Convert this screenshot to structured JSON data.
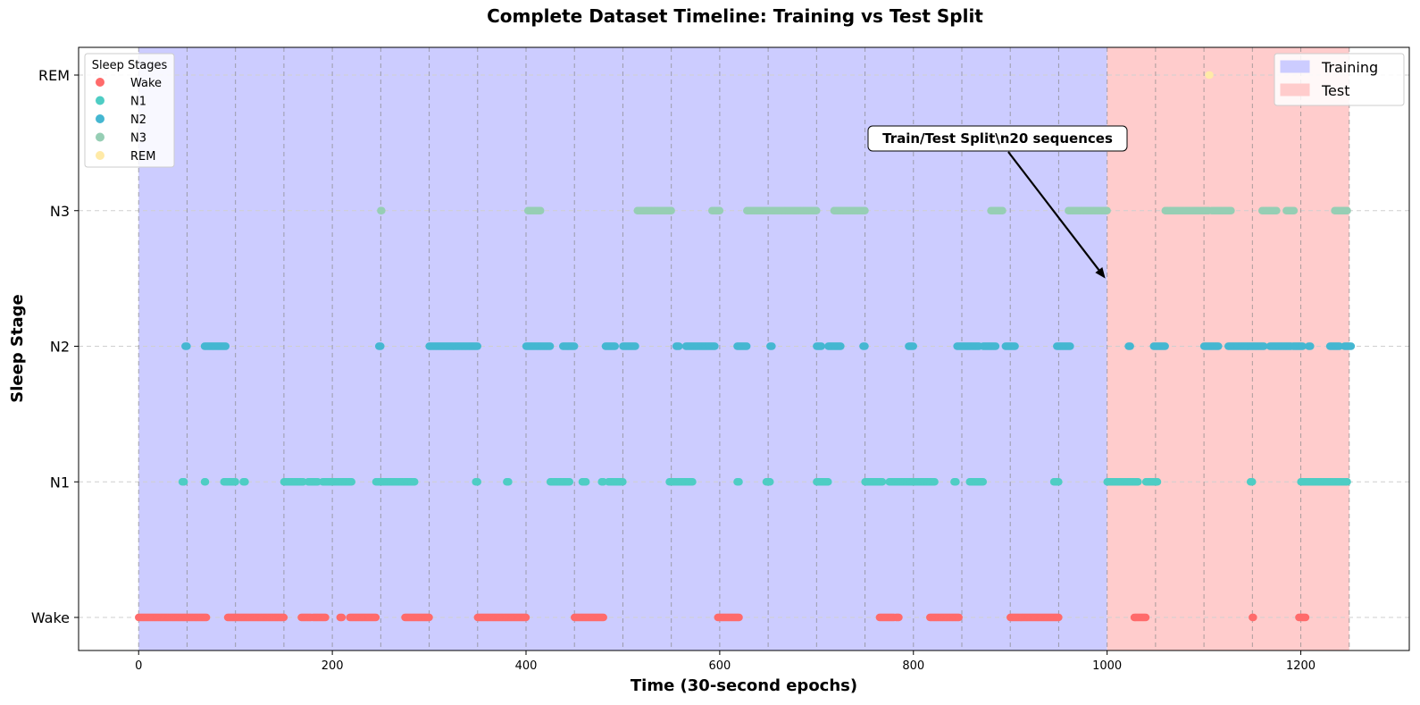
{
  "chart_data": {
    "type": "scatter",
    "title": "Complete Dataset Timeline: Training vs Test Split",
    "xlabel": "Time (30-second epochs)",
    "ylabel": "Sleep Stage",
    "xlim": [
      -62,
      1312
    ],
    "x_ticks": [
      0,
      200,
      400,
      600,
      800,
      1000,
      1200
    ],
    "y_categories": [
      "Wake",
      "N1",
      "N2",
      "N3",
      "REM"
    ],
    "grid": "horizontal dashed at each stage",
    "sequence_boundaries": [
      0,
      50,
      100,
      150,
      200,
      250,
      300,
      350,
      400,
      450,
      500,
      550,
      600,
      650,
      700,
      750,
      800,
      850,
      900,
      950,
      1000,
      1050,
      1100,
      1150,
      1200,
      1250
    ],
    "regions": [
      {
        "name": "Training",
        "from": 0,
        "to": 1000,
        "color": "#ccccff"
      },
      {
        "name": "Test",
        "from": 1000,
        "to": 1250,
        "color": "#ffcccc"
      }
    ],
    "annotation": {
      "text": "Train/Test Split\\n20 sequences",
      "x": 1000,
      "y_stage": 2.5
    },
    "legend_stages_title": "Sleep Stages",
    "legend_stages_position": "upper-left",
    "legend_regions_position": "upper-right",
    "stage_colors": {
      "Wake": "#ff6b6b",
      "N1": "#4ecdc4",
      "N2": "#45b7d1",
      "N3": "#96ceb4",
      "REM": "#ffeaa7"
    },
    "series": [
      {
        "name": "Wake",
        "stage": 0,
        "ranges": [
          [
            0,
            70
          ],
          [
            92,
            150
          ],
          [
            168,
            178
          ],
          [
            180,
            193
          ],
          [
            208,
            210
          ],
          [
            218,
            245
          ],
          [
            275,
            300
          ],
          [
            350,
            400
          ],
          [
            450,
            480
          ],
          [
            598,
            620
          ],
          [
            765,
            780
          ],
          [
            782,
            785
          ],
          [
            817,
            847
          ],
          [
            900,
            950
          ],
          [
            1028,
            1040
          ],
          [
            1150,
            1151
          ],
          [
            1198,
            1205
          ]
        ]
      },
      {
        "name": "N1",
        "stage": 1,
        "ranges": [
          [
            45,
            47
          ],
          [
            68,
            69
          ],
          [
            88,
            100
          ],
          [
            108,
            110
          ],
          [
            150,
            170
          ],
          [
            175,
            185
          ],
          [
            190,
            220
          ],
          [
            245,
            285
          ],
          [
            348,
            350
          ],
          [
            380,
            382
          ],
          [
            425,
            445
          ],
          [
            458,
            462
          ],
          [
            478,
            480
          ],
          [
            485,
            500
          ],
          [
            548,
            572
          ],
          [
            618,
            620
          ],
          [
            648,
            652
          ],
          [
            700,
            712
          ],
          [
            750,
            768
          ],
          [
            775,
            822
          ],
          [
            842,
            844
          ],
          [
            858,
            872
          ],
          [
            945,
            950
          ],
          [
            1000,
            1032
          ],
          [
            1040,
            1052
          ],
          [
            1148,
            1150
          ],
          [
            1200,
            1248
          ]
        ]
      },
      {
        "name": "N2",
        "stage": 2,
        "ranges": [
          [
            48,
            50
          ],
          [
            68,
            90
          ],
          [
            248,
            250
          ],
          [
            300,
            350
          ],
          [
            400,
            425
          ],
          [
            438,
            450
          ],
          [
            482,
            492
          ],
          [
            500,
            513
          ],
          [
            555,
            558
          ],
          [
            565,
            595
          ],
          [
            618,
            628
          ],
          [
            652,
            654
          ],
          [
            700,
            705
          ],
          [
            712,
            725
          ],
          [
            748,
            750
          ],
          [
            795,
            800
          ],
          [
            845,
            868
          ],
          [
            872,
            885
          ],
          [
            895,
            905
          ],
          [
            948,
            962
          ],
          [
            1022,
            1024
          ],
          [
            1048,
            1060
          ],
          [
            1100,
            1115
          ],
          [
            1125,
            1162
          ],
          [
            1168,
            1190
          ],
          [
            1192,
            1202
          ],
          [
            1208,
            1210
          ],
          [
            1230,
            1240
          ],
          [
            1245,
            1252
          ]
        ]
      },
      {
        "name": "N3",
        "stage": 3,
        "ranges": [
          [
            250,
            251
          ],
          [
            402,
            415
          ],
          [
            515,
            550
          ],
          [
            592,
            600
          ],
          [
            628,
            700
          ],
          [
            718,
            750
          ],
          [
            880,
            892
          ],
          [
            960,
            1000
          ],
          [
            1060,
            1105
          ],
          [
            1108,
            1128
          ],
          [
            1160,
            1175
          ],
          [
            1185,
            1193
          ],
          [
            1235,
            1248
          ]
        ]
      },
      {
        "name": "REM",
        "stage": 4,
        "ranges": [
          [
            1105,
            1106
          ]
        ]
      }
    ]
  }
}
